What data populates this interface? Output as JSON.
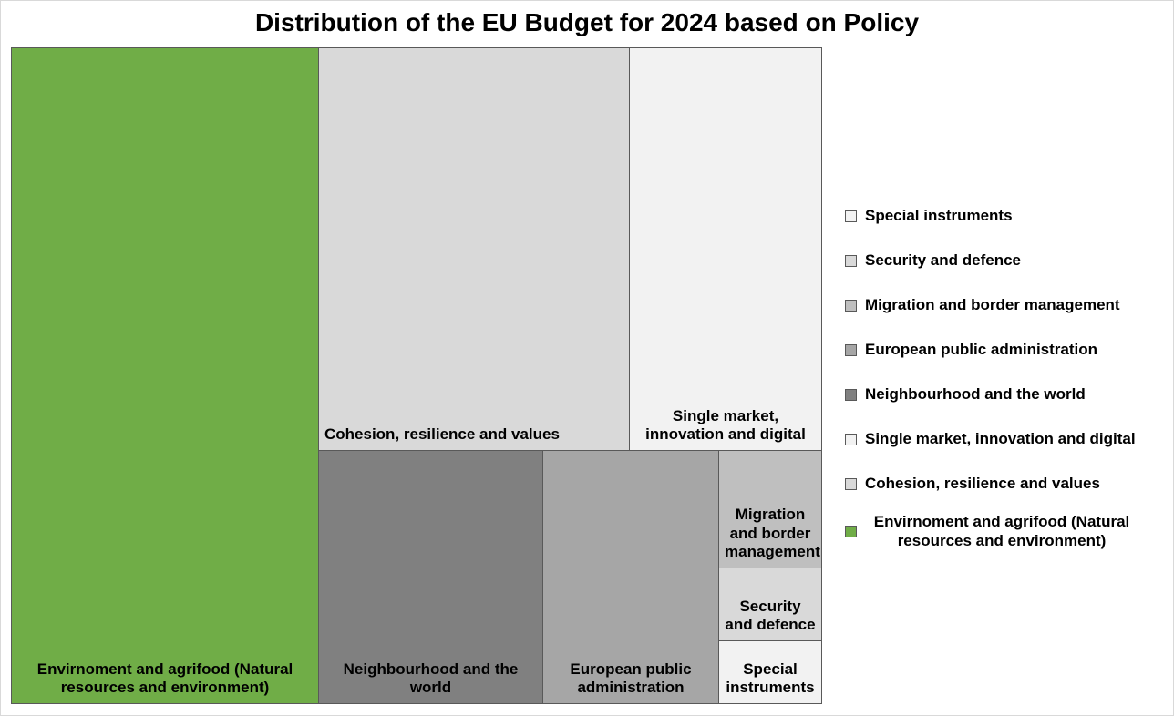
{
  "chart_data": {
    "type": "treemap",
    "title": "Distribution of the EU Budget for 2024 based on Policy",
    "items": [
      {
        "label": "Envirnoment and agrifood (Natural resources and environment)",
        "value": 56.7,
        "color": "#70ad47"
      },
      {
        "label": "Cohesion, resilience and values",
        "value": 35.6,
        "color": "#d9d9d9"
      },
      {
        "label": "Single market, innovation and digital",
        "value": 21.8,
        "color": "#f2f2f2"
      },
      {
        "label": "Neighbourhood and the world",
        "value": 16.3,
        "color": "#808080"
      },
      {
        "label": "European public administration",
        "value": 12.8,
        "color": "#a6a6a6"
      },
      {
        "label": "Migration and border management",
        "value": 3.9,
        "color": "#bfbfbf"
      },
      {
        "label": "Security and defence",
        "value": 2.3,
        "color": "#d9d9d9"
      },
      {
        "label": "Special instruments",
        "value": 1.9,
        "color": "#f2f2f2"
      }
    ],
    "legend": {
      "position": "right",
      "entries": [
        {
          "label": "Special instruments",
          "color": "#f2f2f2"
        },
        {
          "label": "Security and defence",
          "color": "#d9d9d9"
        },
        {
          "label": "Migration and border management",
          "color": "#bfbfbf"
        },
        {
          "label": "European public administration",
          "color": "#a6a6a6"
        },
        {
          "label": "Neighbourhood and the world",
          "color": "#808080"
        },
        {
          "label": "Single market, innovation and digital",
          "color": "#f2f2f2"
        },
        {
          "label": "Cohesion, resilience and values",
          "color": "#d9d9d9"
        },
        {
          "label": "Envirnoment and agrifood (Natural resources and environment)",
          "color": "#70ad47"
        }
      ]
    }
  }
}
